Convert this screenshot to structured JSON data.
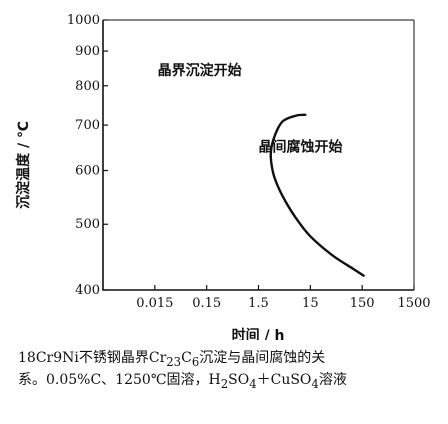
{
  "chart_data": {
    "type": "line",
    "xlabel": "时间 / h",
    "ylabel": "沉淀温度 / ℃",
    "x_scale": "log",
    "y_scale": "log",
    "xlim": [
      0.0015,
      1500
    ],
    "ylim": [
      400,
      1000
    ],
    "x_ticks": [
      {
        "value": 0.015,
        "label": "0.015"
      },
      {
        "value": 0.15,
        "label": "0.15"
      },
      {
        "value": 1.5,
        "label": "1.5"
      },
      {
        "value": 15,
        "label": "15"
      },
      {
        "value": 150,
        "label": "150"
      },
      {
        "value": 1500,
        "label": "1500"
      }
    ],
    "y_ticks": [
      {
        "value": 400,
        "label": "400"
      },
      {
        "value": 500,
        "label": "500"
      },
      {
        "value": 600,
        "label": "600"
      },
      {
        "value": 700,
        "label": "700"
      },
      {
        "value": 800,
        "label": "800"
      },
      {
        "value": 900,
        "label": "900"
      },
      {
        "value": 1000,
        "label": "1000"
      }
    ],
    "series": [
      {
        "name": "",
        "x": [
          12,
          8,
          4.5,
          3.2,
          2.6,
          2.8,
          3.5,
          5,
          8,
          15,
          40,
          100,
          160
        ],
        "y": [
          725,
          723,
          710,
          680,
          640,
          600,
          570,
          540,
          510,
          480,
          450,
          430,
          420
        ]
      }
    ],
    "annotations": [
      {
        "text": "晶界沉淀开始",
        "x": 0.017,
        "y": 830
      },
      {
        "text": "晶间腐蚀开始",
        "x": 1.5,
        "y": 640
      }
    ],
    "grid": false,
    "legend": "none"
  },
  "caption": {
    "line1_a": "18Cr9Ni不锈钢晶界Cr",
    "line1_sub1": "23",
    "line1_b": "C",
    "line1_sub2": "6",
    "line1_c": "沉淀与晶间腐蚀的关",
    "line2_a": "系。0.05%C、1250℃固溶，H",
    "line2_sub1": "2",
    "line2_b": "SO",
    "line2_sub2": "4",
    "line2_c": "＋CuSO",
    "line2_sub3": "4",
    "line2_d": "溶液"
  }
}
